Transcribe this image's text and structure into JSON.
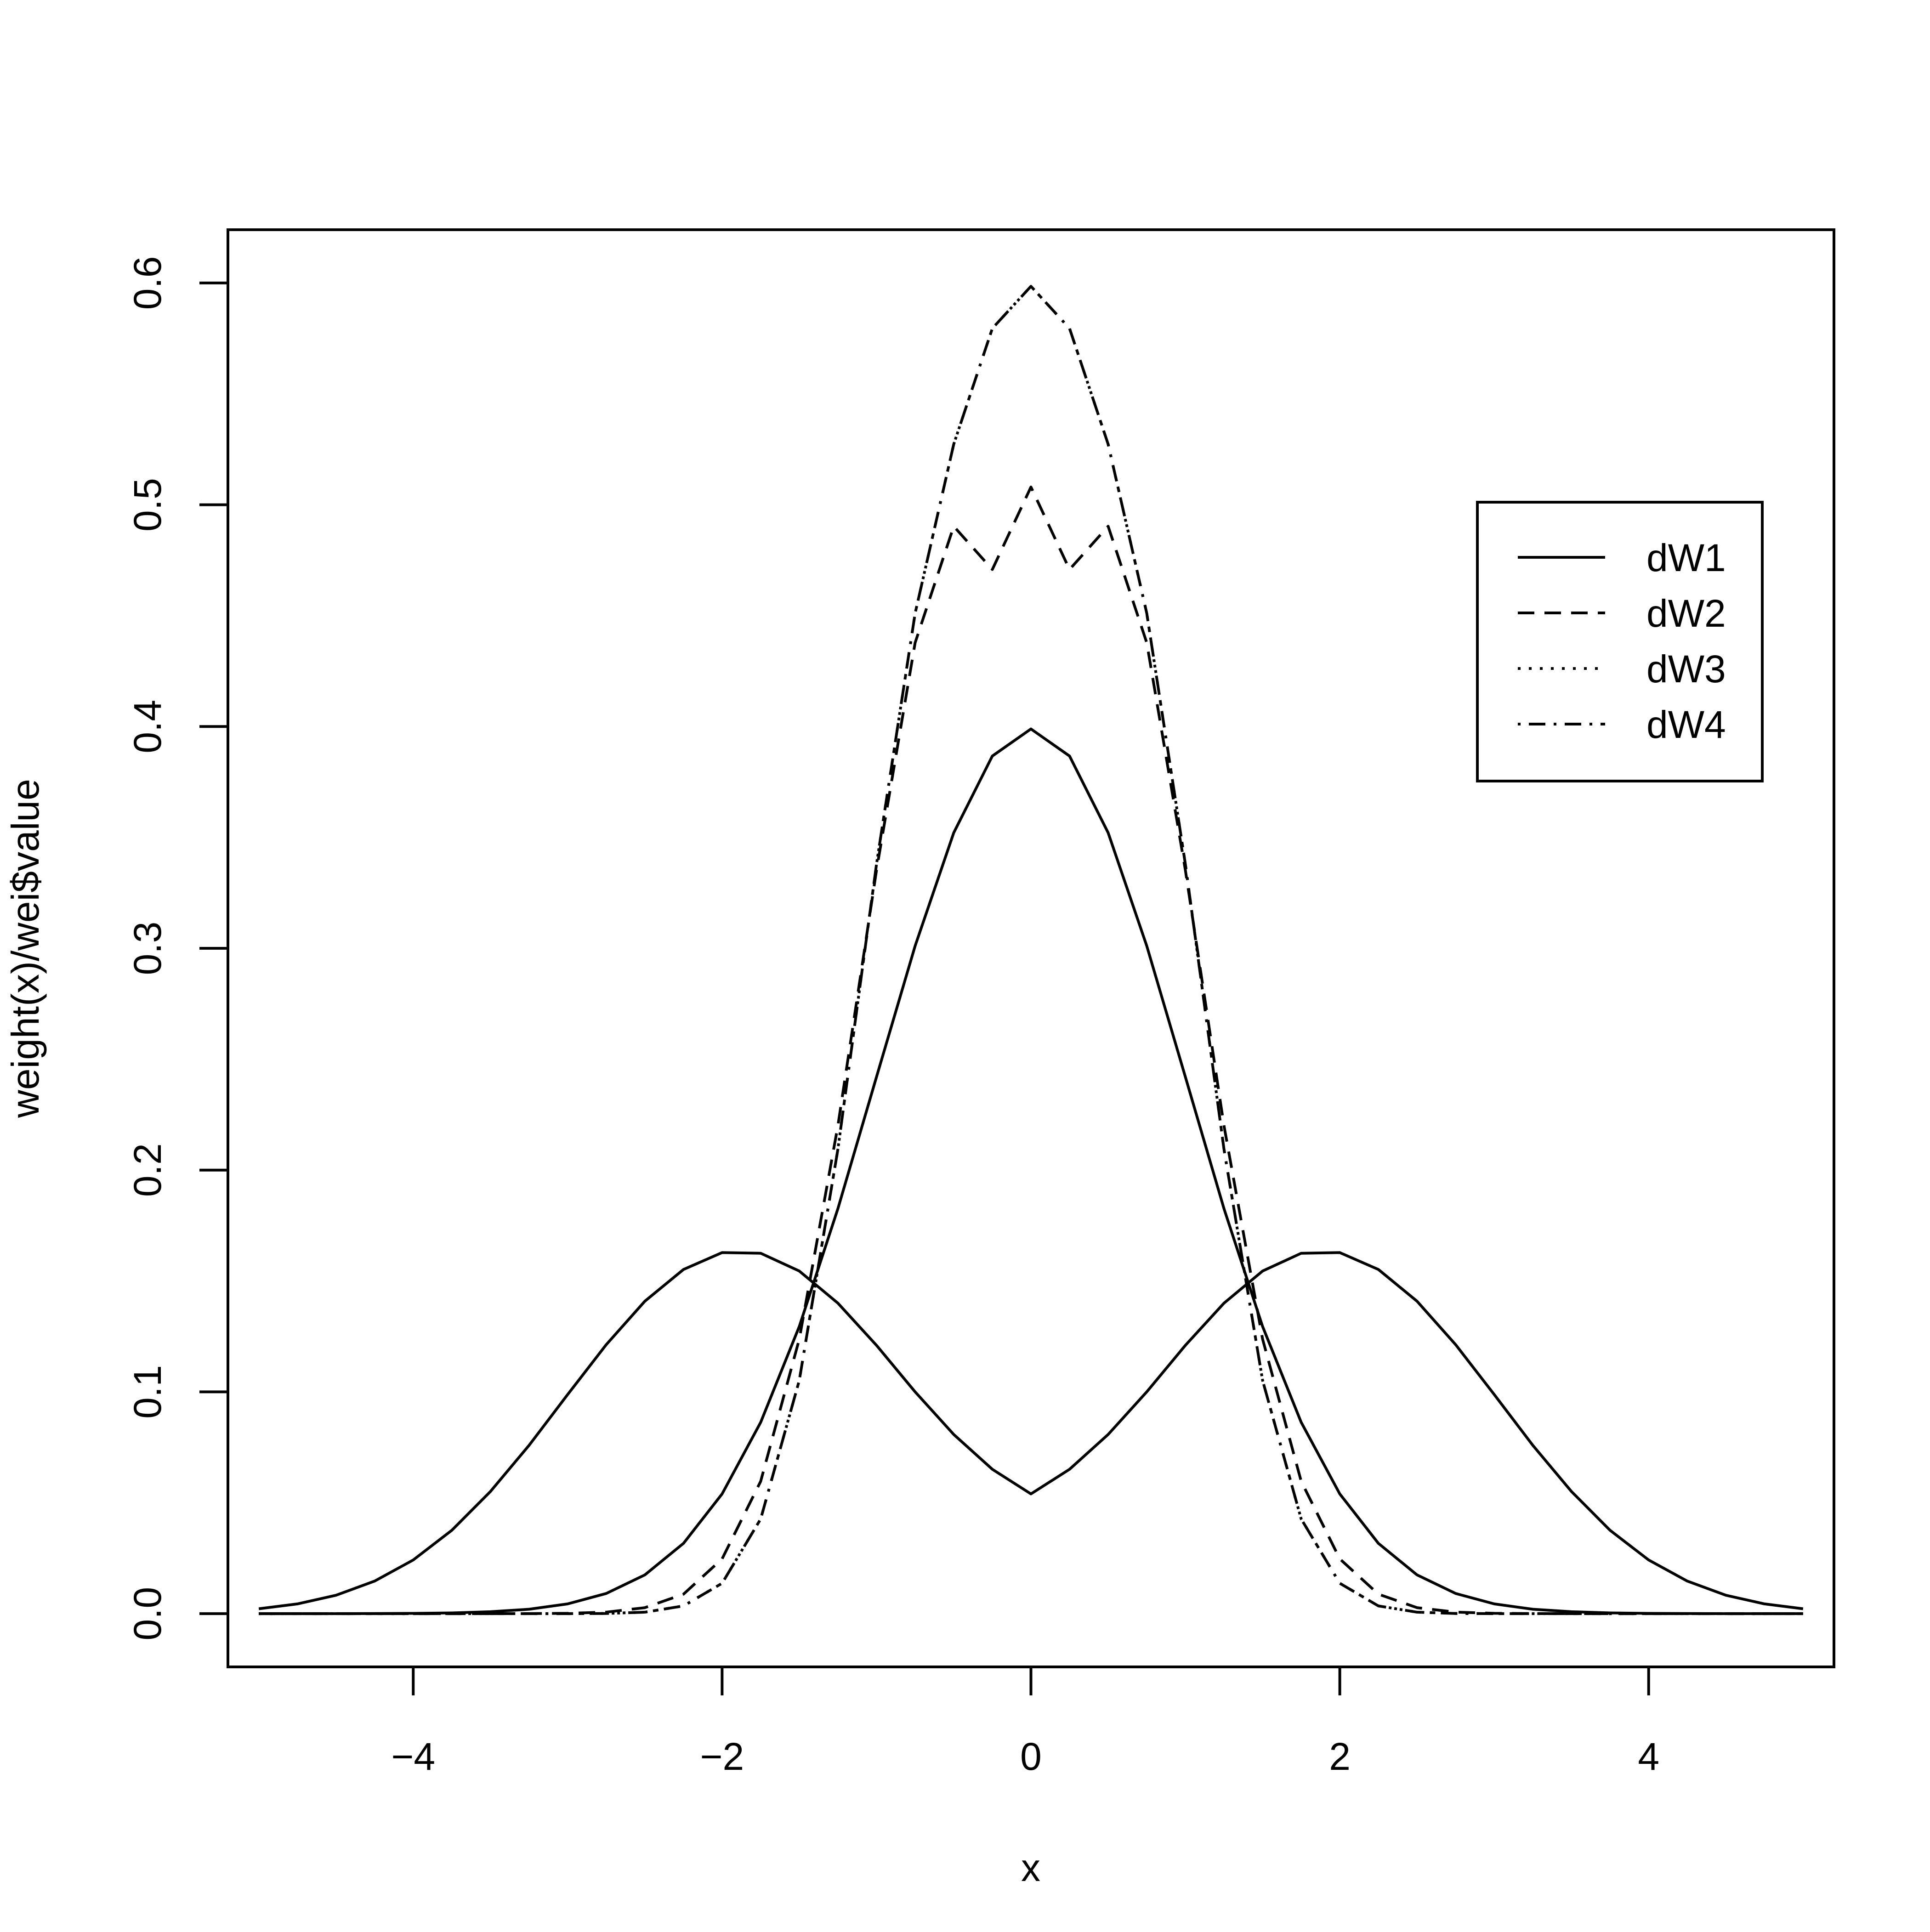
{
  "chart_data": {
    "type": "line",
    "title": "",
    "xlabel": "x",
    "ylabel": "weight(x)/wei$value",
    "xlim": [
      -5.2,
      5.2
    ],
    "ylim": [
      -0.024,
      0.624
    ],
    "x_ticks": [
      -4,
      -2,
      0,
      2,
      4
    ],
    "x_tick_labels": [
      "−4",
      "−2",
      "0",
      "2",
      "4"
    ],
    "y_ticks": [
      0.0,
      0.1,
      0.2,
      0.3,
      0.4,
      0.5,
      0.6
    ],
    "y_tick_labels": [
      "0.0",
      "0.1",
      "0.2",
      "0.3",
      "0.4",
      "0.5",
      "0.6"
    ],
    "grid": false,
    "legend_position": "top-right",
    "x": [
      -5.0,
      -4.75,
      -4.5,
      -4.25,
      -4.0,
      -3.75,
      -3.5,
      -3.25,
      -3.0,
      -2.75,
      -2.5,
      -2.25,
      -2.0,
      -1.75,
      -1.5,
      -1.25,
      -1.0,
      -0.75,
      -0.5,
      -0.25,
      0.0,
      0.25,
      0.5,
      0.75,
      1.0,
      1.25,
      1.5,
      1.75,
      2.0,
      2.25,
      2.5,
      2.75,
      3.0,
      3.25,
      3.5,
      3.75,
      4.0,
      4.25,
      4.5,
      4.75,
      5.0
    ],
    "series": [
      {
        "name": "dW1",
        "line_style": "solid",
        "color": "#000000",
        "curves": [
          [
            1.5e-06,
            5e-06,
            1.6e-05,
            4.9e-05,
            0.00013,
            0.00035,
            0.00087,
            0.002,
            0.0044,
            0.0091,
            0.0175,
            0.0317,
            0.054,
            0.0863,
            0.1295,
            0.1826,
            0.242,
            0.3011,
            0.3521,
            0.3867,
            0.3989,
            0.3867,
            0.3521,
            0.3011,
            0.242,
            0.1826,
            0.1295,
            0.0863,
            0.054,
            0.0317,
            0.0175,
            0.0091,
            0.0044,
            0.002,
            0.00087,
            0.00035,
            0.00013,
            4.9e-05,
            1.6e-05,
            5e-06,
            1.5e-06
          ],
          [
            0.0022,
            0.0044,
            0.0083,
            0.0147,
            0.0242,
            0.0376,
            0.0551,
            0.0759,
            0.0988,
            0.1213,
            0.1409,
            0.1552,
            0.1628,
            0.1625,
            0.1545,
            0.14,
            0.121,
            0.1,
            0.0808,
            0.0651,
            0.054,
            0.0651,
            0.0808,
            0.1,
            0.121,
            0.14,
            0.1545,
            0.1625,
            0.1628,
            0.1552,
            0.1409,
            0.1213,
            0.0988,
            0.0759,
            0.0551,
            0.0376,
            0.0242,
            0.0147,
            0.0083,
            0.0044,
            0.0022
          ]
        ],
        "curves_note": ""
      },
      {
        "name": "dW2",
        "line_style": "dashed",
        "color": "#000000",
        "values": [
          0.0,
          0.0,
          0.0,
          0.0,
          1e-07,
          7e-07,
          5e-06,
          3e-05,
          0.00016,
          0.0007,
          0.0027,
          0.0088,
          0.0247,
          0.0597,
          0.1238,
          0.22,
          0.3352,
          0.4378,
          0.4903,
          0.4708,
          0.508,
          0.4708,
          0.4903,
          0.4378,
          0.3352,
          0.22,
          0.1238,
          0.0597,
          0.0247,
          0.0088,
          0.0027,
          0.0007,
          0.00016,
          3e-05,
          5e-06,
          7e-07,
          1e-07,
          0.0,
          0.0,
          0.0,
          0.0
        ]
      },
      {
        "name": "dW3",
        "line_style": "dotted",
        "color": "#000000",
        "values": [
          0.0,
          0.0,
          0.0,
          0.0,
          0.0,
          0.0,
          1e-07,
          1e-06,
          1.2e-05,
          0.0001,
          0.00067,
          0.0035,
          0.0137,
          0.0427,
          0.1052,
          0.2094,
          0.3379,
          0.4511,
          0.5273,
          0.5795,
          0.5985,
          0.5795,
          0.5273,
          0.4511,
          0.3379,
          0.2094,
          0.1052,
          0.0427,
          0.0137,
          0.0035,
          0.00067,
          0.0001,
          1.2e-05,
          1e-06,
          1e-07,
          0.0,
          0.0,
          0.0,
          0.0,
          0.0,
          0.0
        ]
      },
      {
        "name": "dW4",
        "line_style": "dotdash",
        "color": "#000000",
        "values": [
          0.0,
          0.0,
          0.0,
          0.0,
          0.0,
          0.0,
          1e-07,
          1e-06,
          1.2e-05,
          0.0001,
          0.00067,
          0.0035,
          0.0137,
          0.0427,
          0.1052,
          0.2094,
          0.3379,
          0.4511,
          0.5273,
          0.5795,
          0.5985,
          0.5795,
          0.5273,
          0.4511,
          0.3379,
          0.2094,
          0.1052,
          0.0427,
          0.0137,
          0.0035,
          0.00067,
          0.0001,
          1.2e-05,
          1e-06,
          1e-07,
          0.0,
          0.0,
          0.0,
          0.0,
          0.0,
          0.0
        ]
      }
    ]
  }
}
